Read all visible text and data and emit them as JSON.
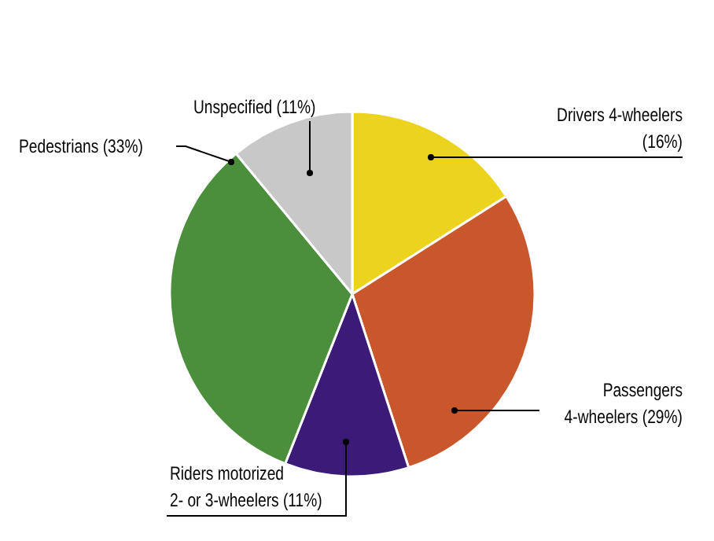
{
  "chart_data": {
    "type": "pie",
    "categories": [
      "Drivers 4-wheelers",
      "Passengers 4-wheelers",
      "Riders motorized 2- or 3-wheelers",
      "Pedestrians",
      "Unspecified"
    ],
    "values": [
      16,
      29,
      11,
      33,
      11
    ],
    "value_labels": [
      "(16%)",
      "(29%)",
      "(11%)",
      "(33%)",
      "(11%)"
    ],
    "colors": [
      "#ecd41e",
      "#c9572b",
      "#3b1a78",
      "#4b8f3c",
      "#c8c8c8"
    ],
    "legend": false
  }
}
